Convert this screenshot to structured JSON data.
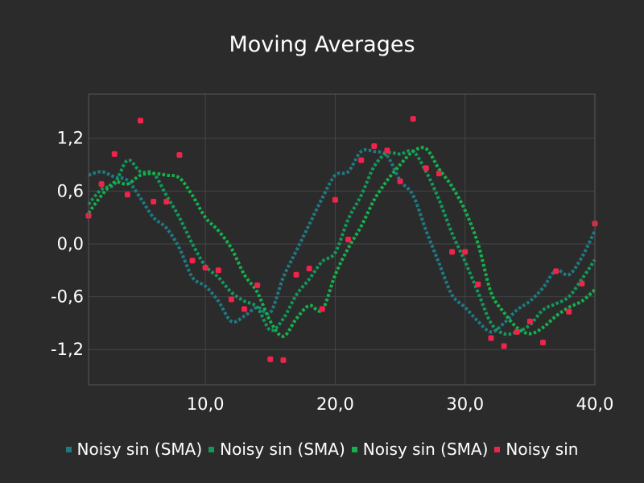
{
  "chart_data": {
    "type": "line",
    "title": "Moving Averages",
    "xlabel": "",
    "ylabel": "",
    "xlim": [
      1,
      40
    ],
    "ylim": [
      -1.6,
      1.7
    ],
    "x_ticks": [
      10,
      20,
      30,
      40
    ],
    "x_tick_labels": [
      "10,0",
      "20,0",
      "30,0",
      "40,0"
    ],
    "y_ticks": [
      1.2,
      0.6,
      0.0,
      -0.6,
      -1.2
    ],
    "y_tick_labels": [
      "1,2",
      "0,6",
      "0,0",
      "-0,6",
      "-1,2"
    ],
    "grid": true,
    "legend_position": "bottom",
    "series": [
      {
        "name": "Noisy sin (SMA)",
        "kind": "dotted-line",
        "color": "#1f7a80",
        "x": [
          1,
          2,
          3,
          4,
          5,
          6,
          7,
          8,
          9,
          10,
          11,
          12,
          13,
          14,
          15,
          16,
          17,
          18,
          19,
          20,
          21,
          22,
          23,
          24,
          25,
          26,
          27,
          28,
          29,
          30,
          31,
          32,
          33,
          34,
          35,
          36,
          37,
          38,
          39,
          40
        ],
        "values": [
          0.78,
          0.82,
          0.76,
          0.72,
          0.52,
          0.3,
          0.18,
          -0.05,
          -0.38,
          -0.48,
          -0.65,
          -0.88,
          -0.82,
          -0.72,
          -0.78,
          -0.38,
          -0.08,
          0.22,
          0.52,
          0.78,
          0.82,
          1.05,
          1.05,
          1.0,
          0.72,
          0.55,
          0.15,
          -0.22,
          -0.58,
          -0.72,
          -0.88,
          -1.0,
          -0.9,
          -0.75,
          -0.65,
          -0.5,
          -0.3,
          -0.35,
          -0.15,
          0.15
        ]
      },
      {
        "name": "Noisy sin (SMA)",
        "kind": "dotted-line",
        "color": "#13985a",
        "x": [
          1,
          2,
          3,
          4,
          5,
          6,
          7,
          8,
          9,
          10,
          11,
          12,
          13,
          14,
          15,
          16,
          17,
          18,
          19,
          20,
          21,
          22,
          23,
          24,
          25,
          26,
          27,
          28,
          29,
          30,
          31,
          32,
          33,
          34,
          35,
          36,
          37,
          38,
          39,
          40
        ],
        "values": [
          0.45,
          0.62,
          0.68,
          0.95,
          0.82,
          0.8,
          0.55,
          0.3,
          0.0,
          -0.25,
          -0.38,
          -0.55,
          -0.65,
          -0.72,
          -0.98,
          -0.85,
          -0.58,
          -0.4,
          -0.2,
          -0.1,
          0.28,
          0.55,
          0.88,
          1.03,
          1.02,
          1.05,
          0.82,
          0.5,
          0.12,
          -0.2,
          -0.55,
          -0.9,
          -1.02,
          -1.0,
          -0.92,
          -0.75,
          -0.68,
          -0.6,
          -0.4,
          -0.18
        ]
      },
      {
        "name": "Noisy sin (SMA)",
        "kind": "dotted-line",
        "color": "#15b04c",
        "x": [
          1,
          2,
          3,
          4,
          5,
          6,
          7,
          8,
          9,
          10,
          11,
          12,
          13,
          14,
          15,
          16,
          17,
          18,
          19,
          20,
          21,
          22,
          23,
          24,
          25,
          26,
          27,
          28,
          29,
          30,
          31,
          32,
          33,
          34,
          35,
          36,
          37,
          38,
          39,
          40
        ],
        "values": [
          0.35,
          0.55,
          0.7,
          0.68,
          0.78,
          0.8,
          0.78,
          0.75,
          0.55,
          0.3,
          0.15,
          -0.05,
          -0.35,
          -0.55,
          -0.88,
          -1.05,
          -0.85,
          -0.7,
          -0.75,
          -0.35,
          -0.05,
          0.2,
          0.5,
          0.72,
          0.9,
          1.05,
          1.08,
          0.85,
          0.65,
          0.38,
          0.0,
          -0.55,
          -0.78,
          -0.95,
          -1.02,
          -0.95,
          -0.82,
          -0.72,
          -0.65,
          -0.52
        ]
      },
      {
        "name": "Noisy sin",
        "kind": "points",
        "color": "#f0234a",
        "x": [
          1,
          2,
          3,
          4,
          5,
          6,
          7,
          8,
          9,
          10,
          11,
          12,
          13,
          14,
          15,
          16,
          17,
          18,
          19,
          20,
          21,
          22,
          23,
          24,
          25,
          26,
          27,
          28,
          29,
          30,
          31,
          32,
          33,
          34,
          35,
          36,
          37,
          38,
          39,
          40
        ],
        "values": [
          0.32,
          0.68,
          1.02,
          0.56,
          1.4,
          0.48,
          0.48,
          1.01,
          -0.19,
          -0.27,
          -0.3,
          -0.63,
          -0.74,
          -0.47,
          -1.31,
          -1.32,
          -0.35,
          -0.28,
          -0.74,
          0.5,
          0.05,
          0.95,
          1.11,
          1.06,
          0.71,
          1.42,
          0.86,
          0.8,
          -0.09,
          -0.09,
          -0.46,
          -1.07,
          -1.16,
          -1.0,
          -0.88,
          -1.12,
          -0.31,
          -0.77,
          -0.45,
          0.23
        ]
      }
    ]
  }
}
